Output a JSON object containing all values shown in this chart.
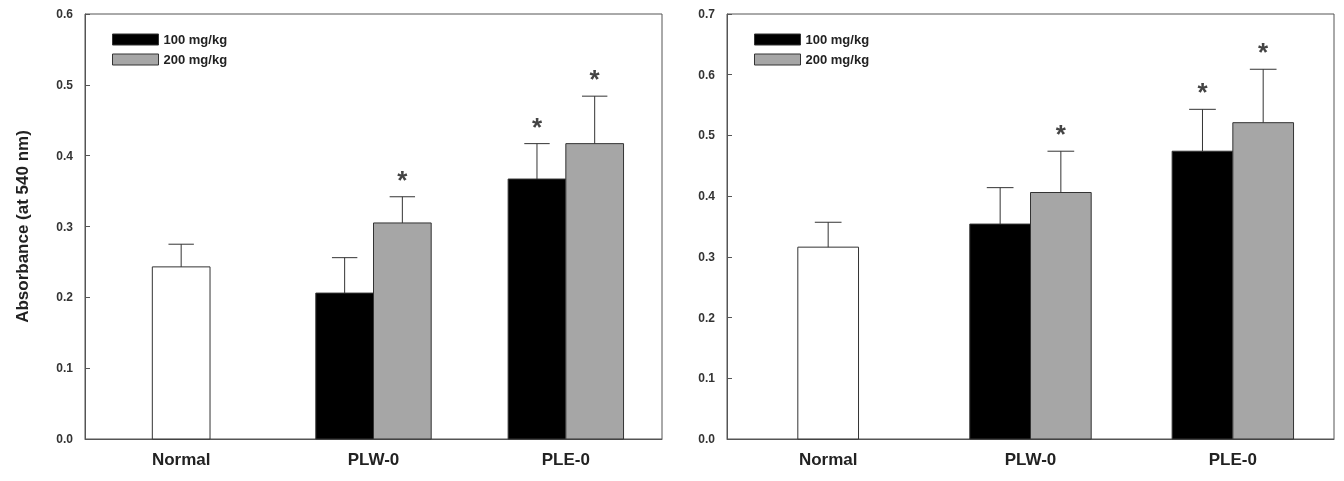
{
  "chart_data": [
    {
      "type": "bar",
      "ylabel": "Absorbance (at 540 nm)",
      "categories": [
        "Normal",
        "PLW-0",
        "PLE-0"
      ],
      "series": [
        {
          "color": "#ffffff",
          "values": [
            0.243,
            null,
            null
          ],
          "errors": [
            [
              0.243,
              0.275
            ],
            null,
            null
          ]
        },
        {
          "name": "100 mg/kg",
          "color": "#000000",
          "values": [
            null,
            0.206,
            0.367
          ],
          "errors": [
            null,
            [
              0.206,
              0.256
            ],
            [
              0.367,
              0.417
            ]
          ]
        },
        {
          "name": "200 mg/kg",
          "color": "#a6a6a6",
          "values": [
            null,
            0.305,
            0.417
          ],
          "errors": [
            null,
            [
              0.305,
              0.342
            ],
            [
              0.417,
              0.484
            ]
          ]
        }
      ],
      "ylim": [
        0,
        0.6
      ],
      "yticks": [
        {
          "value": 0,
          "label": "0.0"
        },
        0.1,
        0.2,
        0.3,
        0.4,
        0.5,
        0.6
      ],
      "annotations": [
        {
          "text": "*",
          "x": "PLW-0",
          "y": 0.305
        },
        {
          "text": "*",
          "x": "PLE-0",
          "y": 0.367
        },
        {
          "text": "*",
          "x": "PLE-0",
          "y": 0.417
        }
      ],
      "legend": "top left",
      "grid": false
    },
    {
      "type": "bar",
      "categories": [
        "Normal",
        "PLW-0",
        "PLE-0"
      ],
      "series": [
        {
          "color": "#ffffff",
          "values": [
            0.316,
            null,
            null
          ],
          "errors": [
            [
              0.316,
              0.357
            ],
            null,
            null
          ]
        },
        {
          "name": "100 mg/kg",
          "color": "#000000",
          "values": [
            null,
            0.354,
            0.474
          ],
          "errors": [
            null,
            [
              0.354,
              0.414
            ],
            [
              0.474,
              0.543
            ]
          ]
        },
        {
          "name": "200 mg/kg",
          "color": "#a6a6a6",
          "values": [
            null,
            0.406,
            0.521
          ],
          "errors": [
            null,
            [
              0.406,
              0.474
            ],
            [
              0.521,
              0.609
            ]
          ]
        }
      ],
      "ylim": [
        0,
        0.7
      ],
      "yticks": [
        {
          "value": 0,
          "label": "0.0"
        },
        0.1,
        0.2,
        0.3,
        0.4,
        0.5,
        0.6,
        0.7
      ],
      "annotations": [
        {
          "text": "*",
          "x": "PLW-0",
          "y": 0.406
        },
        {
          "text": "*",
          "x": "PLE-0",
          "y": 0.474
        },
        {
          "text": "*",
          "x": "PLE-0",
          "y": 0.521
        }
      ],
      "legend": "top left",
      "grid": false
    }
  ]
}
